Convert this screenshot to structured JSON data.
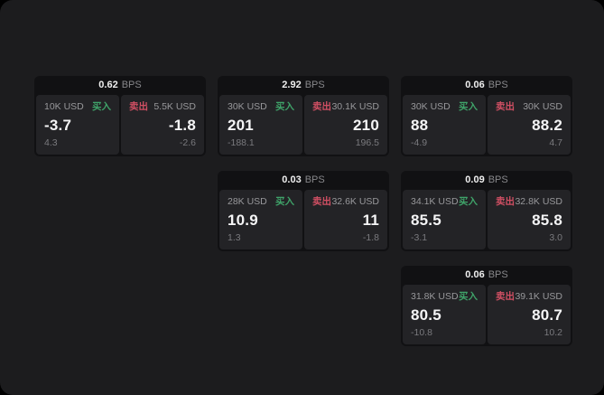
{
  "labels": {
    "bps": "BPS",
    "buy": "买入",
    "sell": "卖出"
  },
  "colors": {
    "page_background": "#1c1c1e",
    "card_background": "#111113",
    "panel_background": "#232326",
    "buy_green": "#3fa369",
    "sell_red": "#d04f63",
    "primary_text": "#f5f5f6",
    "muted_text": "#98989b",
    "delta_text": "#7a7a7e"
  },
  "cards": [
    {
      "spread_bps": "0.62",
      "bid": {
        "size": "10K USD",
        "price": "-3.7",
        "delta": "4.3"
      },
      "ask": {
        "size": "5.5K USD",
        "price": "-1.8",
        "delta": "-2.6"
      }
    },
    {
      "spread_bps": "2.92",
      "bid": {
        "size": "30K USD",
        "price": "201",
        "delta": "-188.1"
      },
      "ask": {
        "size": "30.1K USD",
        "price": "210",
        "delta": "196.5"
      }
    },
    {
      "spread_bps": "0.06",
      "bid": {
        "size": "30K USD",
        "price": "88",
        "delta": "-4.9"
      },
      "ask": {
        "size": "30K USD",
        "price": "88.2",
        "delta": "4.7"
      }
    },
    {
      "spread_bps": "0.03",
      "bid": {
        "size": "28K USD",
        "price": "10.9",
        "delta": "1.3"
      },
      "ask": {
        "size": "32.6K USD",
        "price": "11",
        "delta": "-1.8"
      }
    },
    {
      "spread_bps": "0.09",
      "bid": {
        "size": "34.1K USD",
        "price": "85.5",
        "delta": "-3.1"
      },
      "ask": {
        "size": "32.8K USD",
        "price": "85.8",
        "delta": "3.0"
      }
    },
    {
      "spread_bps": "0.06",
      "bid": {
        "size": "31.8K USD",
        "price": "80.5",
        "delta": "-10.8"
      },
      "ask": {
        "size": "39.1K USD",
        "price": "80.7",
        "delta": "10.2"
      }
    }
  ]
}
